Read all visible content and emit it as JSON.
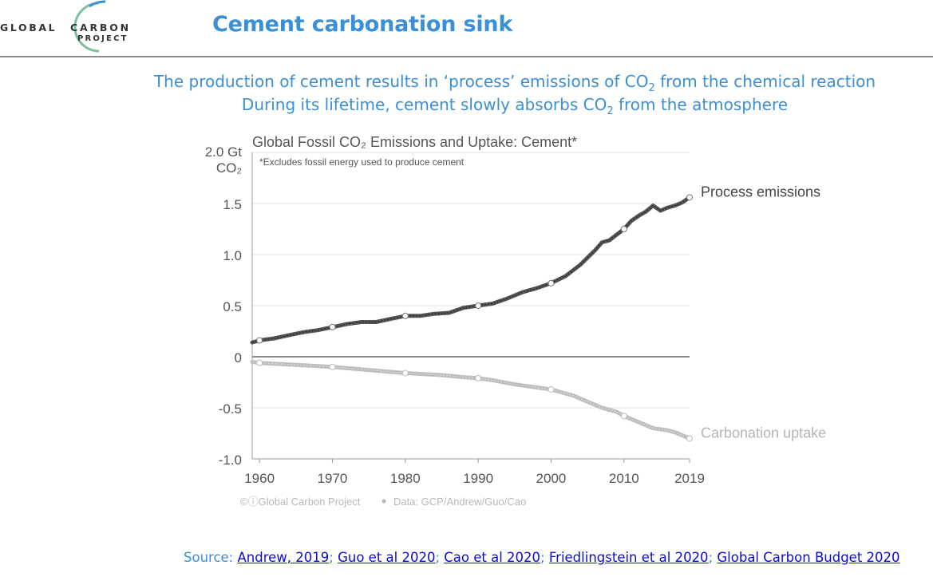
{
  "header": {
    "logo_word1": "GLOBAL",
    "logo_word2": "CARBON",
    "logo_word3": "PROJECT",
    "slide_title": "Cement carbonation sink",
    "subtitle_line1_pre": "The production of cement results in ‘process’ emissions of CO",
    "subtitle_line1_sub": "2",
    "subtitle_line1_post": " from the chemical reaction",
    "subtitle_line2_pre": "During its lifetime, cement slowly absorbs CO",
    "subtitle_line2_sub": "2",
    "subtitle_line2_post": " from the atmosphere"
  },
  "chart_data": {
    "type": "line",
    "title": "Global Fossil CO₂ Emissions and Uptake: Cement*",
    "note": "*Excludes fossil energy used to produce cement",
    "ylabel_top": "2.0 Gt",
    "ylabel_unit": "CO₂",
    "ylim": [
      -1.0,
      2.0
    ],
    "xlim": [
      1959,
      2019
    ],
    "y_ticks": [
      1.5,
      1.0,
      0.5,
      0,
      -0.5,
      -1.0
    ],
    "y_tick_labels": [
      "1.5",
      "1.0",
      "0.5",
      "0",
      "-0.5",
      "-1.0"
    ],
    "x_ticks": [
      1960,
      1970,
      1980,
      1990,
      2000,
      2010,
      2019
    ],
    "x_tick_labels": [
      "1960",
      "1970",
      "1980",
      "1990",
      "2000",
      "2010",
      "2019"
    ],
    "grid": true,
    "series": [
      {
        "name": "Process emissions",
        "color": "#555555",
        "x": [
          1959,
          1960,
          1962,
          1964,
          1966,
          1968,
          1970,
          1972,
          1974,
          1976,
          1978,
          1980,
          1982,
          1984,
          1986,
          1988,
          1990,
          1992,
          1994,
          1996,
          1998,
          2000,
          2002,
          2004,
          2006,
          2007,
          2008,
          2010,
          2011,
          2012,
          2013,
          2014,
          2015,
          2016,
          2017,
          2018,
          2019
        ],
        "y": [
          0.14,
          0.16,
          0.18,
          0.21,
          0.24,
          0.26,
          0.29,
          0.32,
          0.34,
          0.34,
          0.37,
          0.4,
          0.4,
          0.42,
          0.43,
          0.48,
          0.5,
          0.52,
          0.57,
          0.63,
          0.67,
          0.72,
          0.79,
          0.9,
          1.04,
          1.12,
          1.14,
          1.25,
          1.33,
          1.38,
          1.42,
          1.48,
          1.43,
          1.46,
          1.48,
          1.51,
          1.56
        ]
      },
      {
        "name": "Carbonation uptake",
        "color": "#bdbdbd",
        "x": [
          1959,
          1960,
          1965,
          1970,
          1975,
          1980,
          1985,
          1988,
          1990,
          1992,
          1995,
          2000,
          2003,
          2005,
          2007,
          2009,
          2010,
          2012,
          2014,
          2016,
          2017,
          2018,
          2019
        ],
        "y": [
          -0.05,
          -0.06,
          -0.08,
          -0.1,
          -0.13,
          -0.16,
          -0.18,
          -0.2,
          -0.21,
          -0.23,
          -0.27,
          -0.32,
          -0.38,
          -0.44,
          -0.5,
          -0.54,
          -0.58,
          -0.64,
          -0.7,
          -0.72,
          -0.74,
          -0.77,
          -0.8
        ]
      }
    ],
    "highlight_x": [
      1960,
      1970,
      1980,
      1990,
      2000,
      2010,
      2019
    ],
    "footer": "Global Carbon Project",
    "footer_data": "Data: GCP/Andrew/Guo/Cao"
  },
  "source": {
    "prefix": "Source: ",
    "links": [
      {
        "label": "Andrew, 2019"
      },
      {
        "label": "Guo et al 2020"
      },
      {
        "label": "Cao et al 2020"
      },
      {
        "label": "Friedlingstein et al 2020"
      },
      {
        "label": "Global Carbon Budget 2020"
      }
    ],
    "separator": "; "
  }
}
